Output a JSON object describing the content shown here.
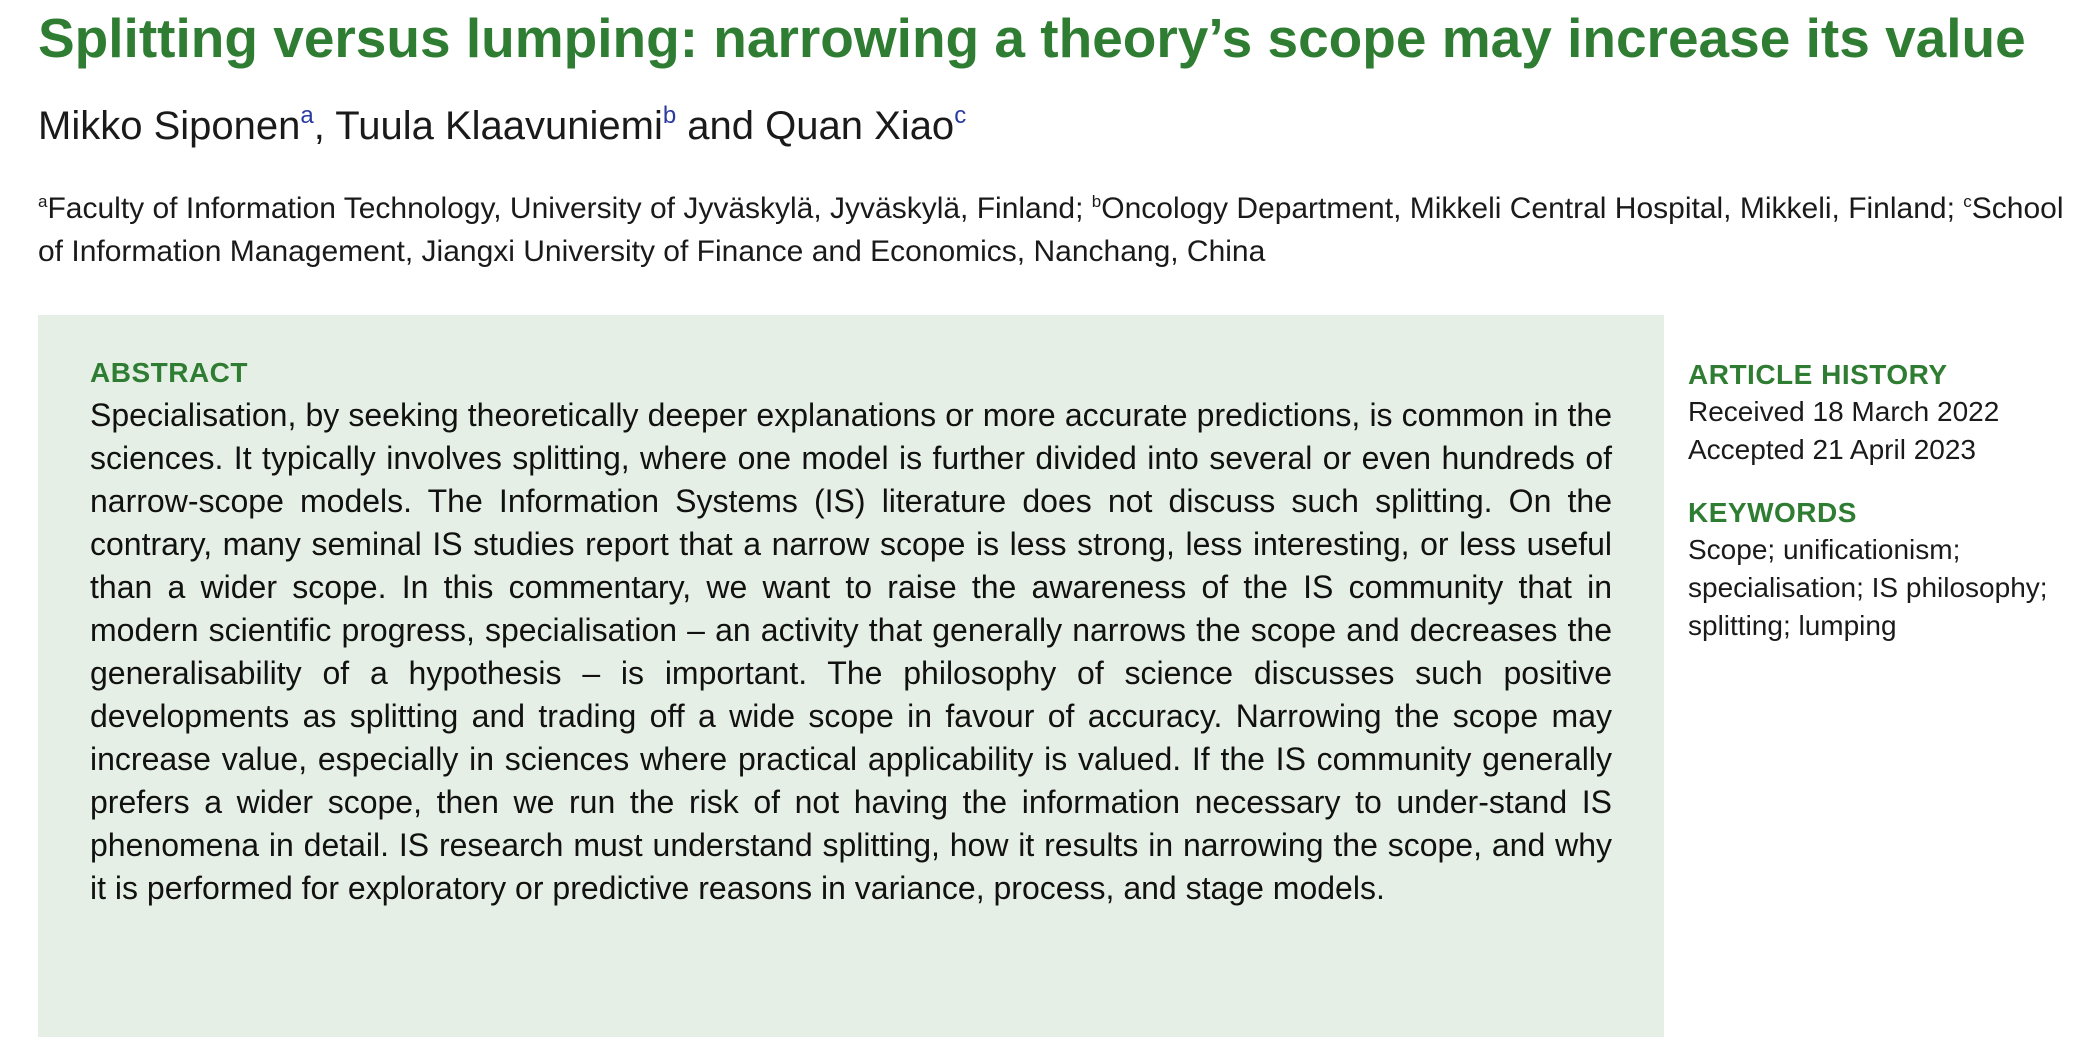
{
  "title": "Splitting versus lumping: narrowing a theory’s scope may increase its value",
  "authors": [
    {
      "name": "Mikko Siponen",
      "mark": "a",
      "sep": ", "
    },
    {
      "name": "Tuula Klaavuniemi",
      "mark": "b",
      "sep": " and "
    },
    {
      "name": "Quan Xiao",
      "mark": "c",
      "sep": ""
    }
  ],
  "affiliations": [
    {
      "mark": "a",
      "text": "Faculty of Information Technology, University of Jyväskylä, Jyväskylä, Finland; "
    },
    {
      "mark": "b",
      "text": "Oncology Department, Mikkeli Central Hospital, Mikkeli, Finland; "
    },
    {
      "mark": "c",
      "text": "School of Information Management, Jiangxi University of Finance and Economics, Nanchang, China"
    }
  ],
  "abstract": {
    "heading": "ABSTRACT",
    "text": "Specialisation, by seeking theoretically deeper explanations or more accurate predictions, is common in the sciences. It typically involves splitting, where one model is further divided into several or even hundreds of narrow-scope models. The Information Systems (IS) literature does not discuss such splitting. On the contrary, many seminal IS studies report that a narrow scope is less strong, less interesting, or less useful than a wider scope. In this commentary, we want to raise the awareness of the IS community that in modern scientific progress, specialisation – an activity that generally narrows the scope and decreases the generalisability of a hypothesis – is important. The philosophy of science discusses such positive developments as splitting and trading off a wide scope in favour of accuracy. Narrowing the scope may increase value, especially in sciences where practical applicability is valued. If the IS community generally prefers a wider scope, then we run the risk of not having the information necessary to under-stand IS phenomena in detail. IS research must understand splitting, how it results in narrowing the scope, and why it is performed for exploratory or predictive reasons in variance, process, and stage models."
  },
  "article_history": {
    "heading": "ARTICLE HISTORY",
    "received": "Received 18 March 2022",
    "accepted": "Accepted 21 April 2023"
  },
  "keywords": {
    "heading": "KEYWORDS",
    "text": "Scope; unificationism; specialisation; IS philosophy; splitting; lumping"
  },
  "colors": {
    "accent_green": "#2f7d32",
    "abstract_background": "#e6efe5",
    "author_mark_blue": "#2b3aa0"
  }
}
